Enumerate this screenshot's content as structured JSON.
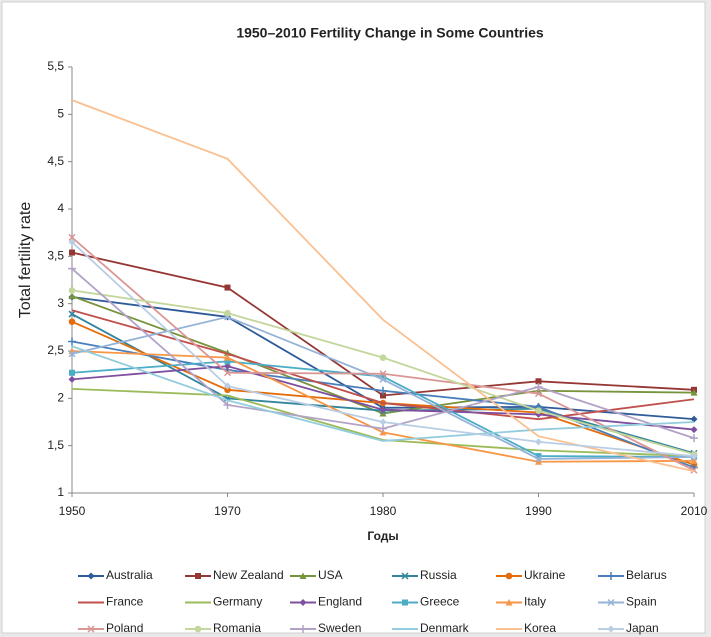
{
  "chart_data": {
    "type": "line",
    "title": "1950–2010 Fertility Change in Some Countries",
    "x_label": "Годы",
    "y_label": "Total fertility rate",
    "categories": [
      "1950",
      "1970",
      "1980",
      "1990",
      "2010"
    ],
    "ylim": [
      1,
      5.5
    ],
    "yticks": [
      1,
      {
        "value": 1.5,
        "label": "1,5"
      },
      2,
      {
        "value": 2.5,
        "label": "2,5"
      },
      3,
      {
        "value": 3.5,
        "label": "3,5"
      },
      4,
      {
        "value": 4.5,
        "label": "4,5"
      },
      5,
      {
        "value": 5.5,
        "label": "5,5"
      }
    ],
    "grid": false,
    "legend": "bottom",
    "series": [
      {
        "name": "Australia",
        "color": "#2e5c99",
        "marker": "diamond",
        "values": [
          3.07,
          2.86,
          1.9,
          1.91,
          1.78
        ]
      },
      {
        "name": "New Zealand",
        "color": "#953735",
        "marker": "square",
        "values": [
          3.54,
          3.17,
          2.03,
          2.18,
          2.09
        ]
      },
      {
        "name": "USA",
        "color": "#77933c",
        "marker": "triangle",
        "values": [
          3.08,
          2.48,
          1.84,
          2.08,
          2.06
        ]
      },
      {
        "name": "Russia",
        "color": "#31859c",
        "marker": "x",
        "values": [
          2.89,
          2.0,
          1.87,
          1.89,
          1.42
        ]
      },
      {
        "name": "Ukraine",
        "color": "#e46c0a",
        "marker": "circle",
        "values": [
          2.81,
          2.09,
          1.95,
          1.85,
          1.3
        ]
      },
      {
        "name": "Belarus",
        "color": "#4a7ebb",
        "marker": "plus",
        "values": [
          2.6,
          2.3,
          2.08,
          1.91,
          1.27
        ]
      },
      {
        "name": "France",
        "color": "#c0504d",
        "marker": "none",
        "values": [
          2.93,
          2.47,
          1.95,
          1.78,
          1.99
        ]
      },
      {
        "name": "Germany",
        "color": "#9bbb59",
        "marker": "none",
        "values": [
          2.1,
          2.03,
          1.56,
          1.45,
          1.39
        ]
      },
      {
        "name": "England",
        "color": "#7f4f9f",
        "marker": "diamond",
        "values": [
          2.2,
          2.34,
          1.88,
          1.83,
          1.67
        ]
      },
      {
        "name": "Greece",
        "color": "#4bacc6",
        "marker": "square",
        "values": [
          2.27,
          2.39,
          2.23,
          1.39,
          1.38
        ]
      },
      {
        "name": "Italy",
        "color": "#f79646",
        "marker": "triangle",
        "values": [
          2.5,
          2.43,
          1.64,
          1.33,
          1.34
        ]
      },
      {
        "name": "Spain",
        "color": "#95b3d7",
        "marker": "x",
        "values": [
          2.47,
          2.86,
          2.2,
          1.36,
          1.38
        ]
      },
      {
        "name": "Poland",
        "color": "#d99694",
        "marker": "x",
        "values": [
          3.7,
          2.27,
          2.26,
          2.05,
          1.24
        ]
      },
      {
        "name": "Romania",
        "color": "#c3d69b",
        "marker": "circle",
        "values": [
          3.14,
          2.9,
          2.43,
          1.87,
          1.41
        ]
      },
      {
        "name": "Sweden",
        "color": "#b3a2c7",
        "marker": "plus",
        "values": [
          3.37,
          1.93,
          1.68,
          2.12,
          1.58
        ]
      },
      {
        "name": "Denmark",
        "color": "#93cddd",
        "marker": "none",
        "values": [
          2.55,
          1.98,
          1.55,
          1.67,
          1.75
        ]
      },
      {
        "name": "Korea",
        "color": "#fac090",
        "marker": "none",
        "values": [
          5.15,
          4.53,
          2.83,
          1.6,
          1.23
        ]
      },
      {
        "name": "Japan",
        "color": "#b9cde5",
        "marker": "diamond",
        "values": [
          3.65,
          2.13,
          1.75,
          1.54,
          1.39
        ]
      }
    ]
  }
}
